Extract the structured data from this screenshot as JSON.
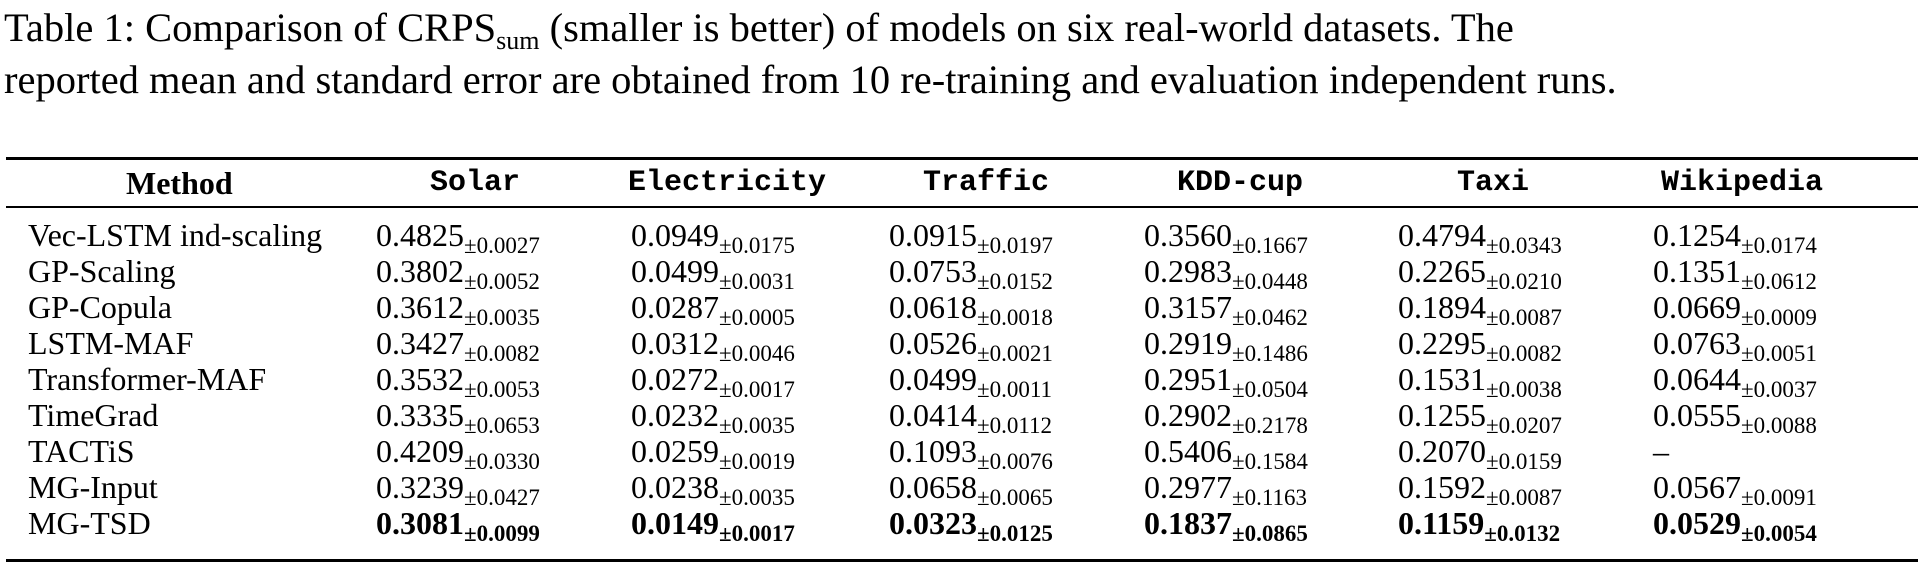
{
  "caption": {
    "line1_before": "Table 1: Comparison of CRPS",
    "line1_sub": "sum",
    "line1_after": " (smaller is better) of models on six real-world datasets. The",
    "line2": "reported mean and standard error are obtained from 10 re-training and evaluation independent runs."
  },
  "table": {
    "method_header": "Method",
    "datasets": [
      "Solar",
      "Electricity",
      "Traffic",
      "KDD-cup",
      "Taxi",
      "Wikipedia"
    ],
    "rows": [
      {
        "method": "Vec-LSTM ind-scaling",
        "best": false,
        "values": [
          {
            "mean": "0.4825",
            "err": "±0.0027"
          },
          {
            "mean": "0.0949",
            "err": "±0.0175"
          },
          {
            "mean": "0.0915",
            "err": "±0.0197"
          },
          {
            "mean": "0.3560",
            "err": "±0.1667"
          },
          {
            "mean": "0.4794",
            "err": "±0.0343"
          },
          {
            "mean": "0.1254",
            "err": "±0.0174"
          }
        ]
      },
      {
        "method": "GP-Scaling",
        "best": false,
        "values": [
          {
            "mean": "0.3802",
            "err": "±0.0052"
          },
          {
            "mean": "0.0499",
            "err": "±0.0031"
          },
          {
            "mean": "0.0753",
            "err": "±0.0152"
          },
          {
            "mean": "0.2983",
            "err": "±0.0448"
          },
          {
            "mean": "0.2265",
            "err": "±0.0210"
          },
          {
            "mean": "0.1351",
            "err": "±0.0612"
          }
        ]
      },
      {
        "method": "GP-Copula",
        "best": false,
        "values": [
          {
            "mean": "0.3612",
            "err": "±0.0035"
          },
          {
            "mean": "0.0287",
            "err": "±0.0005"
          },
          {
            "mean": "0.0618",
            "err": "±0.0018"
          },
          {
            "mean": "0.3157",
            "err": "±0.0462"
          },
          {
            "mean": "0.1894",
            "err": "±0.0087"
          },
          {
            "mean": "0.0669",
            "err": "±0.0009"
          }
        ]
      },
      {
        "method": "LSTM-MAF",
        "best": false,
        "values": [
          {
            "mean": "0.3427",
            "err": "±0.0082"
          },
          {
            "mean": "0.0312",
            "err": "±0.0046"
          },
          {
            "mean": "0.0526",
            "err": "±0.0021"
          },
          {
            "mean": "0.2919",
            "err": "±0.1486"
          },
          {
            "mean": "0.2295",
            "err": "±0.0082"
          },
          {
            "mean": "0.0763",
            "err": "±0.0051"
          }
        ]
      },
      {
        "method": "Transformer-MAF",
        "best": false,
        "values": [
          {
            "mean": "0.3532",
            "err": "±0.0053"
          },
          {
            "mean": "0.0272",
            "err": "±0.0017"
          },
          {
            "mean": "0.0499",
            "err": "±0.0011"
          },
          {
            "mean": "0.2951",
            "err": "±0.0504"
          },
          {
            "mean": "0.1531",
            "err": "±0.0038"
          },
          {
            "mean": "0.0644",
            "err": "±0.0037"
          }
        ]
      },
      {
        "method": "TimeGrad",
        "best": false,
        "values": [
          {
            "mean": "0.3335",
            "err": "±0.0653"
          },
          {
            "mean": "0.0232",
            "err": "±0.0035"
          },
          {
            "mean": "0.0414",
            "err": "±0.0112"
          },
          {
            "mean": "0.2902",
            "err": "±0.2178"
          },
          {
            "mean": "0.1255",
            "err": "±0.0207"
          },
          {
            "mean": "0.0555",
            "err": "±0.0088"
          }
        ]
      },
      {
        "method": "TACTiS",
        "best": false,
        "values": [
          {
            "mean": "0.4209",
            "err": "±0.0330"
          },
          {
            "mean": "0.0259",
            "err": "±0.0019"
          },
          {
            "mean": "0.1093",
            "err": "±0.0076"
          },
          {
            "mean": "0.5406",
            "err": "±0.1584"
          },
          {
            "mean": "0.2070",
            "err": "±0.0159"
          },
          {
            "mean": "–",
            "err": ""
          }
        ]
      },
      {
        "method": "MG-Input",
        "best": false,
        "values": [
          {
            "mean": "0.3239",
            "err": "±0.0427"
          },
          {
            "mean": "0.0238",
            "err": "±0.0035"
          },
          {
            "mean": "0.0658",
            "err": "±0.0065"
          },
          {
            "mean": "0.2977",
            "err": "±0.1163"
          },
          {
            "mean": "0.1592",
            "err": "±0.0087"
          },
          {
            "mean": "0.0567",
            "err": "±0.0091"
          }
        ]
      },
      {
        "method": "MG-TSD",
        "best": true,
        "values": [
          {
            "mean": "0.3081",
            "err": "±0.0099"
          },
          {
            "mean": "0.0149",
            "err": "±0.0017"
          },
          {
            "mean": "0.0323",
            "err": "±0.0125"
          },
          {
            "mean": "0.1837",
            "err": "±0.0865"
          },
          {
            "mean": "0.1159",
            "err": "±0.0132"
          },
          {
            "mean": "0.0529",
            "err": "±0.0054"
          }
        ]
      }
    ]
  }
}
